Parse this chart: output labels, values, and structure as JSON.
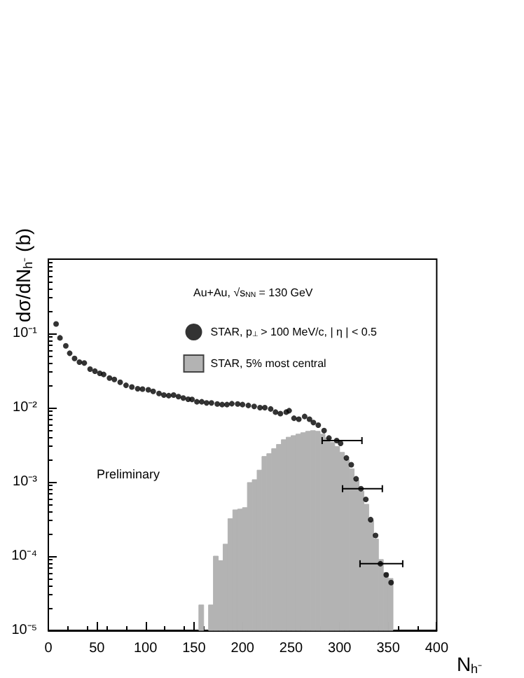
{
  "chart_data": {
    "type": "scatter",
    "ylabel": "dσ/dN$_{h⁻}$ (b)",
    "xlabel": "N$_{h⁻}$",
    "annotations": [
      "Au+Au, √s$_{NN}$ = 130 GeV",
      "Preliminary"
    ],
    "xlim": [
      0,
      400
    ],
    "xticks": [
      0,
      50,
      100,
      150,
      200,
      250,
      300,
      350,
      400
    ],
    "ylim": [
      1e-05,
      1
    ],
    "log": "y",
    "yticks": [
      {
        "value": 1e-05,
        "label": "10⁻⁵"
      },
      {
        "value": 0.0001,
        "label": "10⁻⁴"
      },
      {
        "value": 0.001,
        "label": "10⁻³"
      },
      {
        "value": 0.01,
        "label": "10⁻²"
      },
      {
        "value": 0.1,
        "label": "10⁻¹"
      }
    ],
    "legend": "top right",
    "marker": "circle",
    "series": [
      {
        "type": "histogram",
        "name": "STAR, 5% most central",
        "color": "#b3b3b3",
        "bins": [
          155,
          160,
          165,
          170,
          175,
          180,
          185,
          190,
          195,
          200,
          205,
          210,
          215,
          220,
          225,
          230,
          235,
          240,
          245,
          250,
          255,
          260,
          265,
          270,
          275,
          280,
          285,
          290,
          295,
          300,
          305,
          310,
          315,
          320,
          325,
          330,
          335,
          340,
          345,
          350,
          355
        ],
        "values": [
          2.2e-05,
          null,
          2.2e-05,
          0.0001,
          8.7e-05,
          0.000145,
          0.00032,
          0.00042,
          0.00043,
          0.00045,
          0.00098,
          0.00107,
          0.00144,
          0.0022,
          0.0024,
          0.0028,
          0.0032,
          0.0037,
          0.004,
          0.0042,
          0.0044,
          0.0046,
          0.0048,
          0.0049,
          0.0048,
          0.0044,
          0.0039,
          0.0034,
          0.003,
          0.0025,
          0.002,
          0.0015,
          0.00105,
          0.00075,
          0.0005,
          0.0003,
          0.00017,
          9e-05,
          6e-05,
          5e-05
        ]
      },
      {
        "name": "STAR, p$_{⊥}$ > 100 MeV/c, | η | < 0.5",
        "color": "#000000",
        "x": [
          8,
          12,
          18,
          22,
          27,
          32,
          37,
          43,
          48,
          53,
          57,
          63,
          68,
          74,
          80,
          86,
          92,
          97,
          103,
          108,
          114,
          119,
          124,
          129,
          134,
          139,
          144,
          148,
          153,
          158,
          163,
          168,
          174,
          179,
          184,
          189,
          195,
          200,
          206,
          212,
          218,
          223,
          229,
          234,
          239,
          245,
          248,
          253,
          258,
          264,
          269,
          273,
          278,
          284,
          289,
          297,
          301,
          307,
          312,
          317,
          322,
          327,
          332,
          337,
          342,
          348,
          353
        ],
        "values": [
          0.134,
          0.087,
          0.068,
          0.054,
          0.046,
          0.041,
          0.04,
          0.033,
          0.031,
          0.029,
          0.028,
          0.025,
          0.024,
          0.022,
          0.02,
          0.019,
          0.018,
          0.0178,
          0.0174,
          0.0166,
          0.0155,
          0.0148,
          0.0145,
          0.0148,
          0.0141,
          0.0135,
          0.013,
          0.0129,
          0.012,
          0.012,
          0.0116,
          0.0116,
          0.0112,
          0.011,
          0.011,
          0.0113,
          0.0112,
          0.011,
          0.0107,
          0.0104,
          0.01,
          0.01,
          0.0096,
          0.0087,
          0.0083,
          0.0087,
          0.0091,
          0.0072,
          0.007,
          0.0076,
          0.007,
          0.0063,
          0.0058,
          0.0049,
          0.0039,
          0.0036,
          0.0033,
          0.0021,
          0.0017,
          0.0011,
          0.00081,
          0.00058,
          0.00031,
          0.00019,
          7.9e-05,
          5.6e-05,
          4.4e-05
        ],
        "xerrors": [
          null,
          null,
          null,
          null,
          null,
          null,
          null,
          null,
          null,
          null,
          null,
          null,
          null,
          null,
          null,
          null,
          null,
          null,
          null,
          null,
          null,
          null,
          null,
          null,
          null,
          null,
          null,
          null,
          null,
          null,
          null,
          null,
          null,
          null,
          null,
          null,
          null,
          null,
          null,
          null,
          null,
          null,
          null,
          null,
          null,
          null,
          null,
          null,
          null,
          null,
          null,
          null,
          null,
          null,
          null,
          [
            282,
            323
          ],
          null,
          null,
          null,
          null,
          [
            303,
            344
          ],
          null,
          null,
          null,
          [
            321,
            365
          ],
          null,
          null
        ]
      }
    ]
  }
}
